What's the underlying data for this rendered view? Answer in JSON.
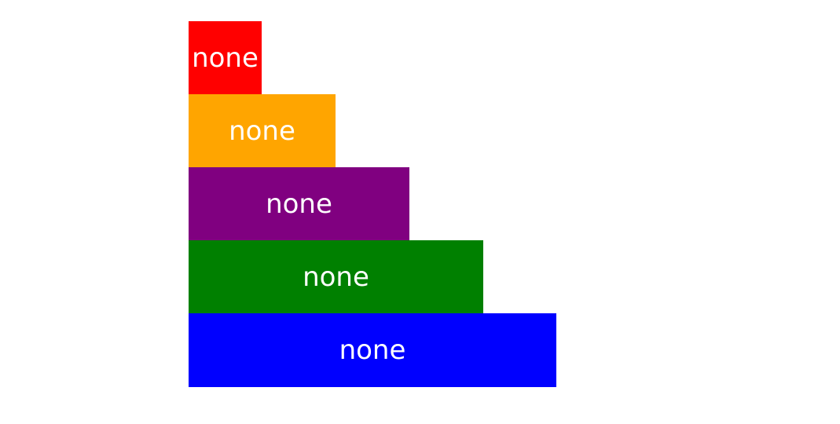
{
  "boxes": [
    {
      "label": "none",
      "color": "#ff0000"
    },
    {
      "label": "none",
      "color": "#ffa500"
    },
    {
      "label": "none",
      "color": "#800080"
    },
    {
      "label": "none",
      "color": "#008000"
    },
    {
      "label": "none",
      "color": "#0000ff"
    }
  ]
}
